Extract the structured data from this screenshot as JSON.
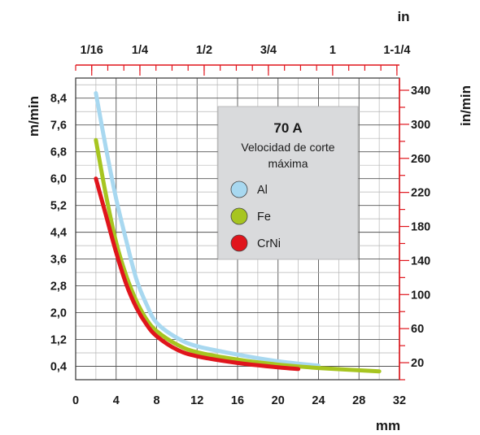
{
  "chart_data": {
    "type": "line",
    "title": "70 A",
    "subtitle": [
      "Velocidad de corte",
      "máxima"
    ],
    "xlabel": "mm",
    "x2label": "in",
    "ylabel": "m/min",
    "y2label": "in/min",
    "xlim": [
      0,
      32
    ],
    "ylim": [
      0,
      9.0
    ],
    "xticks": [
      0,
      4,
      8,
      12,
      16,
      20,
      24,
      28,
      32
    ],
    "yticks": [
      0.4,
      1.2,
      2.0,
      2.8,
      3.6,
      4.4,
      5.2,
      6.0,
      6.8,
      7.6,
      8.4
    ],
    "yticks_labels": [
      "0,4",
      "1,2",
      "2,0",
      "2,8",
      "3,6",
      "4,4",
      "5,2",
      "6,0",
      "6,8",
      "7,6",
      "8,4"
    ],
    "x2ticks": [
      {
        "label": "1/16",
        "mm": 1.5875
      },
      {
        "label": "1/4",
        "mm": 6.35
      },
      {
        "label": "1/2",
        "mm": 12.7
      },
      {
        "label": "3/4",
        "mm": 19.05
      },
      {
        "label": "1",
        "mm": 25.4
      },
      {
        "label": "1-1/4",
        "mm": 31.75
      }
    ],
    "y2ticks": [
      20,
      60,
      100,
      140,
      180,
      220,
      260,
      300,
      340
    ],
    "grid": true,
    "legend_position": "top-right",
    "series": [
      {
        "name": "Al",
        "color": "#a8d8f0",
        "x": [
          2,
          3,
          4,
          5,
          6,
          7,
          8,
          10,
          12,
          16,
          20,
          24
        ],
        "y": [
          8.55,
          6.9,
          5.4,
          4.15,
          3.0,
          2.25,
          1.7,
          1.25,
          1.0,
          0.75,
          0.55,
          0.42
        ]
      },
      {
        "name": "Fe",
        "color": "#a7c520",
        "x": [
          2,
          3,
          4,
          5,
          6,
          7,
          8,
          10,
          12,
          16,
          20,
          24,
          30
        ],
        "y": [
          7.15,
          5.5,
          4.1,
          3.1,
          2.35,
          1.8,
          1.45,
          1.05,
          0.82,
          0.6,
          0.45,
          0.35,
          0.25
        ]
      },
      {
        "name": "CrNi",
        "color": "#e0151c",
        "x": [
          2,
          3,
          4,
          5,
          6,
          7,
          8,
          10,
          12,
          16,
          20,
          22
        ],
        "y": [
          6.0,
          4.9,
          3.8,
          2.85,
          2.15,
          1.65,
          1.3,
          0.9,
          0.7,
          0.5,
          0.37,
          0.32
        ]
      }
    ]
  }
}
